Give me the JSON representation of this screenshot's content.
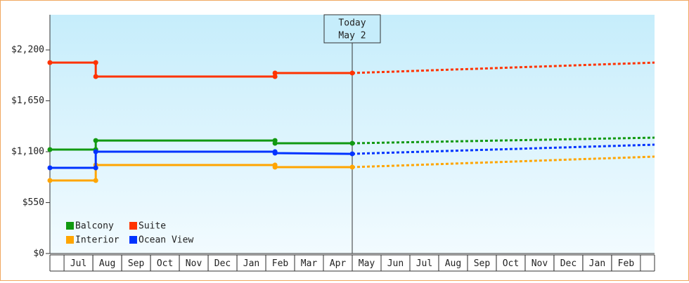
{
  "chart_data": {
    "type": "line",
    "xlim": [
      -0.49,
      20.49
    ],
    "ylim": [
      0,
      2580
    ],
    "yticks": [
      {
        "value": 0,
        "label": "$0"
      },
      {
        "value": 550,
        "label": "$550"
      },
      {
        "value": 1100,
        "label": "$1,100"
      },
      {
        "value": 1650,
        "label": "$1,650"
      },
      {
        "value": 2200,
        "label": "$2,200"
      }
    ],
    "xticks": [
      {
        "value": 0.5,
        "label": "Jul"
      },
      {
        "value": 1.5,
        "label": "Aug"
      },
      {
        "value": 2.5,
        "label": "Sep"
      },
      {
        "value": 3.5,
        "label": "Oct"
      },
      {
        "value": 4.5,
        "label": "Nov"
      },
      {
        "value": 5.5,
        "label": "Dec"
      },
      {
        "value": 6.5,
        "label": "Jan"
      },
      {
        "value": 7.5,
        "label": "Feb"
      },
      {
        "value": 8.5,
        "label": "Mar"
      },
      {
        "value": 9.5,
        "label": "Apr"
      },
      {
        "value": 10.5,
        "label": "May"
      },
      {
        "value": 11.5,
        "label": "Jun"
      },
      {
        "value": 12.5,
        "label": "Jul"
      },
      {
        "value": 13.5,
        "label": "Aug"
      },
      {
        "value": 14.5,
        "label": "Sep"
      },
      {
        "value": 15.5,
        "label": "Oct"
      },
      {
        "value": 16.5,
        "label": "Nov"
      },
      {
        "value": 17.5,
        "label": "Dec"
      },
      {
        "value": 18.5,
        "label": "Jan"
      },
      {
        "value": 19.5,
        "label": "Feb"
      }
    ],
    "today": {
      "x": 10,
      "label": [
        "Today",
        "May 2"
      ]
    },
    "series": [
      {
        "name": "Balcony",
        "color": "#119911",
        "x": [
          -0.49,
          1.1,
          1.1,
          7.32,
          7.32,
          10
        ],
        "values": [
          1123,
          1123,
          1221,
          1221,
          1191,
          1191
        ],
        "forecast": {
          "x": [
            10,
            20.49
          ],
          "values": [
            1191,
            1252
          ]
        }
      },
      {
        "name": "Suite",
        "color": "#ff3300",
        "x": [
          -0.49,
          1.1,
          1.1,
          7.32,
          7.32,
          10
        ],
        "values": [
          2063,
          2063,
          1912,
          1912,
          1950,
          1950
        ],
        "forecast": {
          "x": [
            10,
            20.49
          ],
          "values": [
            1950,
            2063
          ]
        }
      },
      {
        "name": "Interior",
        "color": "#ffa500",
        "x": [
          -0.49,
          1.1,
          1.1,
          7.32,
          7.32,
          10
        ],
        "values": [
          789,
          789,
          956,
          956,
          933,
          933
        ],
        "forecast": {
          "x": [
            10,
            20.49
          ],
          "values": [
            933,
            1047
          ]
        }
      },
      {
        "name": "Ocean View",
        "color": "#0033ff",
        "x": [
          -0.49,
          1.1,
          1.1,
          7.32,
          7.32,
          10
        ],
        "values": [
          926,
          926,
          1100,
          1100,
          1085,
          1077
        ],
        "forecast": {
          "x": [
            10,
            20.49
          ],
          "values": [
            1077,
            1176
          ]
        }
      }
    ]
  }
}
